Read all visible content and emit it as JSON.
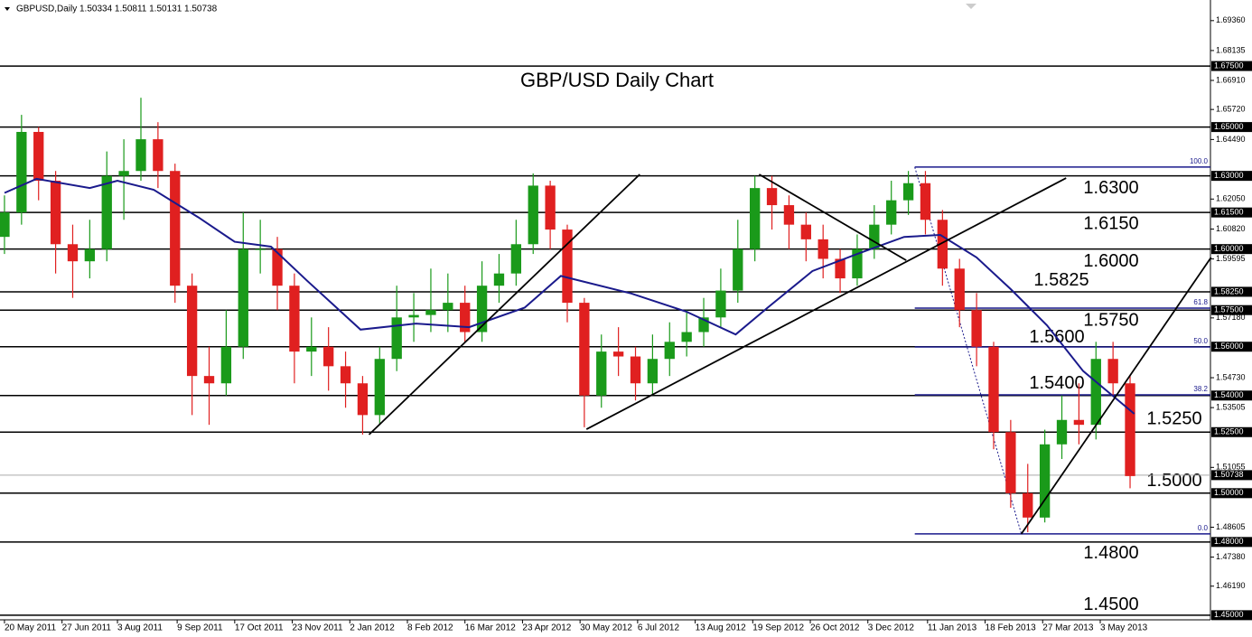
{
  "chart_data": {
    "type": "candlestick",
    "header": "GBPUSD,Daily",
    "header_quote": "1.50334 1.50811 1.50131 1.50738",
    "title": "GBP/USD Daily Chart",
    "xlim": [
      -2.1,
      565.7
    ],
    "ylim": [
      1.4481,
      1.7002
    ],
    "x": [
      0,
      8,
      16,
      24,
      32,
      40,
      48,
      56,
      64,
      72,
      80,
      88,
      96,
      104,
      112,
      120,
      128,
      136,
      144,
      152,
      160,
      168,
      176,
      184,
      192,
      200,
      208,
      216,
      224,
      232,
      240,
      248,
      256,
      264,
      272,
      280,
      288,
      296,
      304,
      312,
      320,
      328,
      336,
      344,
      352,
      360,
      368,
      376,
      384,
      392,
      400,
      408,
      416,
      424,
      432,
      440,
      448,
      456,
      464,
      472,
      480,
      488,
      496,
      504,
      512,
      520,
      528
    ],
    "open": [
      1.605,
      1.615,
      1.648,
      1.628,
      1.602,
      1.595,
      1.6,
      1.63,
      1.632,
      1.645,
      1.632,
      1.585,
      1.548,
      1.545,
      1.56,
      1.6,
      1.6,
      1.585,
      1.558,
      1.56,
      1.552,
      1.545,
      1.532,
      1.555,
      1.572,
      1.573,
      1.575,
      1.578,
      1.566,
      1.585,
      1.59,
      1.602,
      1.626,
      1.608,
      1.578,
      1.54,
      1.558,
      1.556,
      1.545,
      1.555,
      1.562,
      1.566,
      1.572,
      1.583,
      1.6,
      1.625,
      1.618,
      1.61,
      1.604,
      1.596,
      1.588,
      1.6,
      1.61,
      1.62,
      1.627,
      1.612,
      1.592,
      1.575,
      1.56,
      1.525,
      1.5,
      1.49,
      1.52,
      1.53,
      1.528,
      1.555,
      1.545
    ],
    "high": [
      1.622,
      1.655,
      1.65,
      1.632,
      1.61,
      1.612,
      1.64,
      1.645,
      1.662,
      1.652,
      1.635,
      1.59,
      1.56,
      1.575,
      1.615,
      1.612,
      1.605,
      1.59,
      1.572,
      1.568,
      1.558,
      1.548,
      1.56,
      1.585,
      1.582,
      1.592,
      1.59,
      1.585,
      1.595,
      1.598,
      1.612,
      1.631,
      1.628,
      1.61,
      1.58,
      1.565,
      1.568,
      1.56,
      1.565,
      1.57,
      1.575,
      1.58,
      1.592,
      1.612,
      1.63,
      1.63,
      1.622,
      1.615,
      1.61,
      1.6,
      1.606,
      1.618,
      1.628,
      1.632,
      1.632,
      1.616,
      1.596,
      1.582,
      1.562,
      1.53,
      1.512,
      1.526,
      1.54,
      1.545,
      1.562,
      1.562,
      1.548
    ],
    "low": [
      1.598,
      1.61,
      1.62,
      1.59,
      1.58,
      1.588,
      1.595,
      1.612,
      1.628,
      1.625,
      1.578,
      1.532,
      1.528,
      1.54,
      1.555,
      1.59,
      1.575,
      1.545,
      1.548,
      1.542,
      1.535,
      1.524,
      1.528,
      1.55,
      1.562,
      1.566,
      1.566,
      1.562,
      1.562,
      1.578,
      1.585,
      1.598,
      1.6,
      1.57,
      1.527,
      1.535,
      1.548,
      1.538,
      1.54,
      1.548,
      1.556,
      1.56,
      1.568,
      1.578,
      1.595,
      1.608,
      1.6,
      1.595,
      1.588,
      1.582,
      1.585,
      1.596,
      1.606,
      1.614,
      1.606,
      1.585,
      1.568,
      1.552,
      1.518,
      1.494,
      1.484,
      1.488,
      1.514,
      1.52,
      1.522,
      1.54,
      1.502
    ],
    "close": [
      1.615,
      1.648,
      1.628,
      1.602,
      1.595,
      1.6,
      1.63,
      1.632,
      1.645,
      1.632,
      1.585,
      1.548,
      1.545,
      1.56,
      1.6,
      1.6,
      1.585,
      1.558,
      1.56,
      1.552,
      1.545,
      1.532,
      1.555,
      1.572,
      1.573,
      1.575,
      1.578,
      1.566,
      1.585,
      1.59,
      1.602,
      1.626,
      1.608,
      1.578,
      1.54,
      1.558,
      1.556,
      1.545,
      1.555,
      1.562,
      1.566,
      1.572,
      1.583,
      1.6,
      1.625,
      1.618,
      1.61,
      1.604,
      1.596,
      1.588,
      1.6,
      1.61,
      1.62,
      1.627,
      1.612,
      1.592,
      1.575,
      1.56,
      1.525,
      1.5,
      1.49,
      1.52,
      1.53,
      1.528,
      1.555,
      1.545,
      1.507
    ],
    "up_color": "#1a9a1a",
    "down_color": "#e02020",
    "moving_average": {
      "color": "#1a1a8c",
      "x": [
        0,
        15,
        40,
        53,
        70,
        91,
        108,
        125,
        142,
        167,
        193,
        218,
        244,
        261,
        294,
        320,
        343,
        358,
        379,
        400,
        422,
        439,
        456,
        472,
        489,
        506,
        530
      ],
      "values": [
        1.623,
        1.6288,
        1.625,
        1.628,
        1.6243,
        1.613,
        1.603,
        1.601,
        1.587,
        1.567,
        1.5695,
        1.568,
        1.576,
        1.589,
        1.5818,
        1.5743,
        1.565,
        1.576,
        1.591,
        1.598,
        1.605,
        1.6058,
        1.5966,
        1.5836,
        1.5688,
        1.55,
        1.5325
      ]
    },
    "trendlines": [
      {
        "x": [
          171,
          298
        ],
        "values": [
          1.524,
          1.6306
        ]
      },
      {
        "x": [
          273,
          498
        ],
        "values": [
          1.5262,
          1.6291
        ]
      },
      {
        "x": [
          354,
          423
        ],
        "values": [
          1.6306,
          1.5954
        ]
      },
      {
        "x": [
          477,
          566
        ],
        "values": [
          1.4833,
          1.5966
        ]
      }
    ],
    "fibonacci": {
      "x": [
        427,
        477
      ],
      "color": "#1a1a8c",
      "levels": [
        {
          "label": "100.0",
          "value": 1.6336
        },
        {
          "label": "61.8",
          "value": 1.5758
        },
        {
          "label": "50.0",
          "value": 1.5599
        },
        {
          "label": "38.2",
          "value": 1.5403
        },
        {
          "label": "0.0",
          "value": 1.4833
        }
      ]
    },
    "levels": [
      {
        "value": 1.675,
        "axis_label": "1.67500"
      },
      {
        "value": 1.65,
        "axis_label": "1.65000"
      },
      {
        "value": 1.63,
        "label": "1.6300",
        "axis_label": "1.63000"
      },
      {
        "value": 1.615,
        "label": "1.6150",
        "axis_label": "1.61500"
      },
      {
        "value": 1.6,
        "label": "1.6000",
        "axis_label": "1.60000"
      },
      {
        "value": 1.5825,
        "label": "1.5825",
        "axis_label": "1.58250"
      },
      {
        "value": 1.575,
        "label": "1.5750",
        "axis_label": "1.57500"
      },
      {
        "value": 1.56,
        "label": "1.5600",
        "axis_label": "1.56000"
      },
      {
        "value": 1.54,
        "label": "1.5400",
        "axis_label": "1.54000"
      },
      {
        "value": 1.525,
        "label": "1.5250",
        "axis_label": "1.52500"
      },
      {
        "value": 1.5,
        "label": "1.5000",
        "axis_label": "1.50000"
      },
      {
        "value": 1.48,
        "label": "1.4800",
        "axis_label": "1.48000"
      },
      {
        "value": 1.45,
        "label": "1.4500",
        "axis_label": "1.45000"
      }
    ],
    "current_price": {
      "value": 1.50738,
      "label": "1.50738"
    },
    "yticks": [
      {
        "value": 1.6936,
        "label": "1.69360"
      },
      {
        "value": 1.68135,
        "label": "1.68135"
      },
      {
        "value": 1.6691,
        "label": "1.66910"
      },
      {
        "value": 1.6572,
        "label": "1.65720"
      },
      {
        "value": 1.6449,
        "label": "1.64490"
      },
      {
        "value": 1.6205,
        "label": "1.62050"
      },
      {
        "value": 1.6082,
        "label": "1.60820"
      },
      {
        "value": 1.59595,
        "label": "1.59595"
      },
      {
        "value": 1.5718,
        "label": "1.57180"
      },
      {
        "value": 1.5473,
        "label": "1.54730"
      },
      {
        "value": 1.53505,
        "label": "1.53505"
      },
      {
        "value": 1.51055,
        "label": "1.51055"
      },
      {
        "value": 1.48605,
        "label": "1.48605"
      },
      {
        "value": 1.4738,
        "label": "1.47380"
      },
      {
        "value": 1.4619,
        "label": "1.46190"
      }
    ],
    "xticks": [
      {
        "value": 0,
        "label": "20 May 2011"
      },
      {
        "value": 27,
        "label": "27 Jun 2011"
      },
      {
        "value": 53,
        "label": "3 Aug 2011"
      },
      {
        "value": 81,
        "label": "9 Sep 2011"
      },
      {
        "value": 108,
        "label": "17 Oct 2011"
      },
      {
        "value": 135,
        "label": "23 Nov 2011"
      },
      {
        "value": 162,
        "label": "2 Jan 2012"
      },
      {
        "value": 189,
        "label": "8 Feb 2012"
      },
      {
        "value": 216,
        "label": "16 Mar 2012"
      },
      {
        "value": 243,
        "label": "23 Apr 2012"
      },
      {
        "value": 270,
        "label": "30 May 2012"
      },
      {
        "value": 297,
        "label": "6 Jul 2012"
      },
      {
        "value": 324,
        "label": "13 Aug 2012"
      },
      {
        "value": 351,
        "label": "19 Sep 2012"
      },
      {
        "value": 378,
        "label": "26 Oct 2012"
      },
      {
        "value": 405,
        "label": "3 Dec 2012"
      },
      {
        "value": 433,
        "label": "11 Jan 2013"
      },
      {
        "value": 460,
        "label": "18 Feb 2013"
      },
      {
        "value": 487,
        "label": "27 Mar 2013"
      },
      {
        "value": 514,
        "label": "3 May 2013"
      }
    ]
  }
}
